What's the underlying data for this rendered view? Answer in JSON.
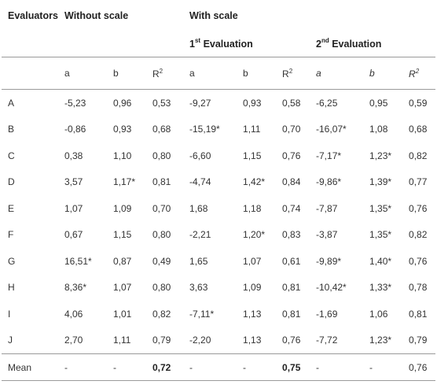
{
  "header": {
    "evaluators": "Evaluators",
    "without_scale": "Without scale",
    "with_scale": "With scale",
    "first_eval_num": "1",
    "first_eval_sup": "st",
    "first_eval_rest": " Evaluation",
    "second_eval_num": "2",
    "second_eval_sup": "nd",
    "second_eval_rest": " Evaluation",
    "col_a": "a",
    "col_b": "b",
    "col_r": "R",
    "col_r_sup": "2"
  },
  "rows": [
    {
      "label": "A",
      "v": [
        "-5,23",
        "0,96",
        "0,53",
        "-9,27",
        "0,93",
        "0,58",
        "-6,25",
        "0,95",
        "0,59"
      ]
    },
    {
      "label": "B",
      "v": [
        "-0,86",
        "0,93",
        "0,68",
        "-15,19*",
        "1,11",
        "0,70",
        "-16,07*",
        "1,08",
        "0,68"
      ]
    },
    {
      "label": "C",
      "v": [
        "0,38",
        "1,10",
        "0,80",
        "-6,60",
        "1,15",
        "0,76",
        "-7,17*",
        "1,23*",
        "0,82"
      ]
    },
    {
      "label": "D",
      "v": [
        "3,57",
        "1,17*",
        "0,81",
        "-4,74",
        "1,42*",
        "0,84",
        "-9,86*",
        "1,39*",
        "0,77"
      ]
    },
    {
      "label": "E",
      "v": [
        "1,07",
        "1,09",
        "0,70",
        "1,68",
        "1,18",
        "0,74",
        "-7,87",
        "1,35*",
        "0,76"
      ]
    },
    {
      "label": "F",
      "v": [
        "0,67",
        "1,15",
        "0,80",
        "-2,21",
        "1,20*",
        "0,83",
        "-3,87",
        "1,35*",
        "0,82"
      ]
    },
    {
      "label": "G",
      "v": [
        "16,51*",
        "0,87",
        "0,49",
        "1,65",
        "1,07",
        "0,61",
        "-9,89*",
        "1,40*",
        "0,76"
      ]
    },
    {
      "label": "H",
      "v": [
        "8,36*",
        "1,07",
        "0,80",
        "3,63",
        "1,09",
        "0,81",
        "-10,42*",
        "1,33*",
        "0,78"
      ]
    },
    {
      "label": "I",
      "v": [
        "4,06",
        "1,01",
        "0,82",
        "-7,11*",
        "1,13",
        "0,81",
        "-1,69",
        "1,06",
        "0,81"
      ]
    },
    {
      "label": "J",
      "v": [
        "2,70",
        "1,11",
        "0,79",
        "-2,20",
        "1,13",
        "0,76",
        "-7,72",
        "1,23*",
        "0,79"
      ]
    }
  ],
  "mean": {
    "label": "Mean",
    "v": [
      "-",
      "-",
      "0,72",
      "-",
      "-",
      "0,75",
      "-",
      "-",
      "0,76"
    ]
  }
}
